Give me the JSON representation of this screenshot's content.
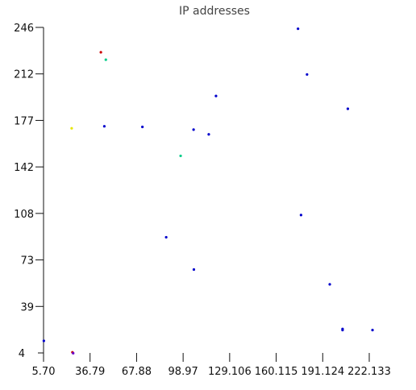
{
  "chart_data": {
    "type": "scatter",
    "title": "IP addresses",
    "xlabel": "",
    "ylabel": "",
    "x_ticks": [
      "5.70",
      "36.79",
      "67.88",
      "98.97",
      "129.106",
      "160.115",
      "191.124",
      "222.133"
    ],
    "y_ticks": [
      "4",
      "39",
      "73",
      "108",
      "142",
      "177",
      "212",
      "246"
    ],
    "xlim": [
      5.7,
      222.133
    ],
    "ylim": [
      4,
      246
    ],
    "grid": false,
    "legend": "none",
    "points": [
      {
        "x": 5.9,
        "y": 13,
        "color": "#0000cc"
      },
      {
        "x": 24.9,
        "y": 4.5,
        "color": "#cc0000"
      },
      {
        "x": 25.4,
        "y": 3.8,
        "color": "#6600cc"
      },
      {
        "x": 24.4,
        "y": 171,
        "color": "#e6e600"
      },
      {
        "x": 43.8,
        "y": 227.5,
        "color": "#cc0000"
      },
      {
        "x": 47.1,
        "y": 222,
        "color": "#00cc88"
      },
      {
        "x": 46.1,
        "y": 172.5,
        "color": "#0000cc"
      },
      {
        "x": 71.4,
        "y": 172,
        "color": "#0000cc"
      },
      {
        "x": 87.2,
        "y": 90,
        "color": "#0000cc"
      },
      {
        "x": 96.8,
        "y": 150.5,
        "color": "#00cc88"
      },
      {
        "x": 105.4,
        "y": 170,
        "color": "#0000cc"
      },
      {
        "x": 105.6,
        "y": 66,
        "color": "#0000cc"
      },
      {
        "x": 115.5,
        "y": 166.5,
        "color": "#0000cc"
      },
      {
        "x": 120.3,
        "y": 195,
        "color": "#0000cc"
      },
      {
        "x": 174.8,
        "y": 245,
        "color": "#0000cc"
      },
      {
        "x": 176.8,
        "y": 106.5,
        "color": "#0000cc"
      },
      {
        "x": 180.8,
        "y": 211,
        "color": "#0000cc"
      },
      {
        "x": 195.9,
        "y": 55,
        "color": "#0000cc"
      },
      {
        "x": 204.4,
        "y": 21,
        "color": "#0000cc"
      },
      {
        "x": 204.4,
        "y": 21.8,
        "color": "#0000cc"
      },
      {
        "x": 207.9,
        "y": 185.5,
        "color": "#0000cc"
      },
      {
        "x": 224.3,
        "y": 21,
        "color": "#0000cc"
      }
    ]
  }
}
